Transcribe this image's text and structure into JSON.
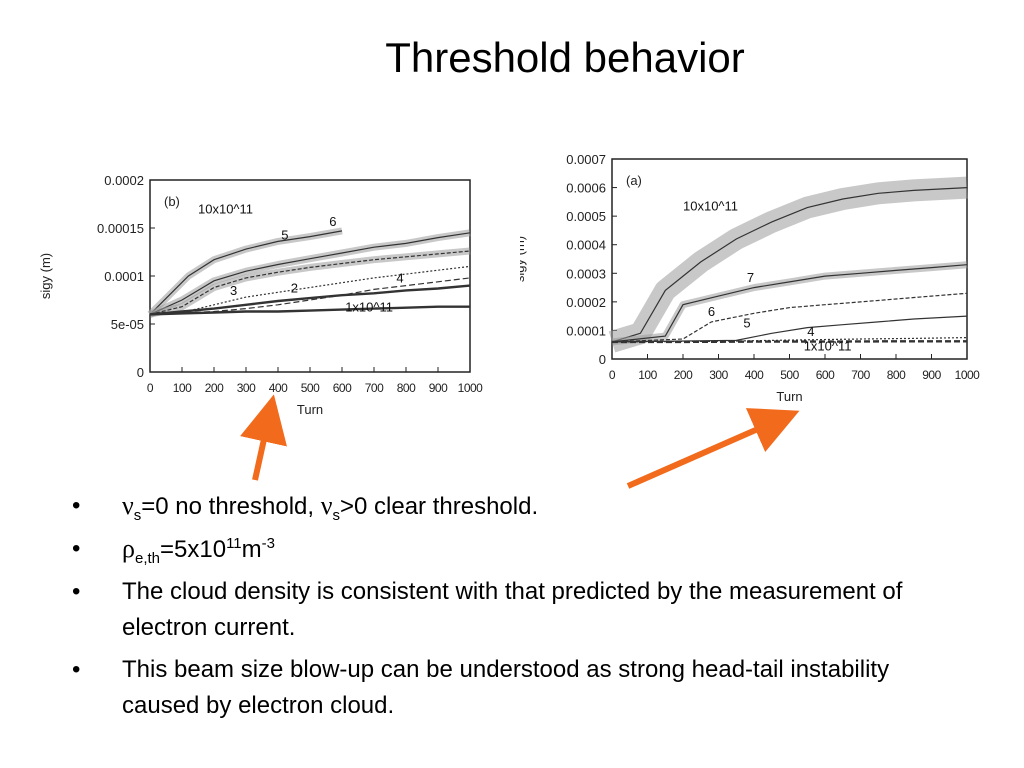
{
  "slide": {
    "title": "Threshold behavior",
    "bullets": {
      "b1": {
        "nu1": "ν",
        "sub1": "s",
        "t1": "=0 no threshold, ",
        "nu2": "ν",
        "sub2": "s",
        "t2": ">0 clear threshold."
      },
      "b2": {
        "rho": "ρ",
        "sub": "e,th",
        "t1": "=5x10",
        "sup1": "11",
        "t2": "m",
        "sup2": "-3"
      },
      "b3": "The cloud density is consistent with that predicted by the measurement of electron current.",
      "b4": "This beam size blow-up can be understood as strong head-tail instability caused by electron cloud."
    },
    "arrow_color": "#f26a1b"
  },
  "chart_data": [
    {
      "type": "line",
      "panel_label": "(b)",
      "xlabel": "Turn",
      "ylabel": "sigy (m)",
      "xlim": [
        0,
        1000
      ],
      "ylim": [
        0,
        0.0002
      ],
      "xticks": [
        "0",
        "100",
        "200",
        "300",
        "400",
        "500",
        "600",
        "700",
        "800",
        "900",
        "1000"
      ],
      "yticks": [
        "0",
        "5e-05",
        "0.0001",
        "0.00015",
        "0.0002"
      ],
      "annotations": [
        "10x10^11",
        "6",
        "5",
        "3",
        "2",
        "4",
        "1x10^11"
      ],
      "series": [
        {
          "name": "10x10^11",
          "x": [
            0,
            60,
            120,
            200,
            300,
            400,
            500,
            600
          ],
          "y": [
            6e-05,
            8e-05,
            0.0001,
            0.000117,
            0.000128,
            0.000136,
            0.000141,
            0.000147
          ]
        },
        {
          "name": "6",
          "x": [
            0,
            100,
            200,
            300,
            400,
            500,
            600,
            700,
            800,
            900,
            1000
          ],
          "y": [
            6e-05,
            7.5e-05,
            9.5e-05,
            0.000105,
            0.000112,
            0.000118,
            0.000124,
            0.00013,
            0.000134,
            0.00014,
            0.000145
          ]
        },
        {
          "name": "5",
          "x": [
            0,
            100,
            200,
            300,
            400,
            500,
            600,
            700,
            800,
            900,
            1000
          ],
          "y": [
            6e-05,
            6.8e-05,
            8.8e-05,
            9.8e-05,
            0.000104,
            0.000109,
            0.000113,
            0.000117,
            0.00012,
            0.000123,
            0.000126
          ]
        },
        {
          "name": "4",
          "x": [
            0,
            100,
            200,
            300,
            400,
            500,
            600,
            700,
            800,
            900,
            1000
          ],
          "y": [
            6e-05,
            6.3e-05,
            6.6e-05,
            7e-05,
            7.4e-05,
            7.7e-05,
            8e-05,
            8.2e-05,
            8.5e-05,
            8.7e-05,
            9e-05
          ]
        },
        {
          "name": "3",
          "x": [
            0,
            100,
            200,
            300,
            400,
            500,
            600,
            700,
            800,
            900,
            1000
          ],
          "y": [
            6e-05,
            6.2e-05,
            7e-05,
            7.8e-05,
            8.3e-05,
            8.8e-05,
            9.3e-05,
            9.8e-05,
            0.000102,
            0.000106,
            0.00011
          ]
        },
        {
          "name": "2",
          "x": [
            0,
            200,
            300,
            400,
            500,
            600,
            700,
            800,
            900,
            1000
          ],
          "y": [
            6e-05,
            6.3e-05,
            6.6e-05,
            7e-05,
            7.5e-05,
            8e-05,
            8.6e-05,
            9e-05,
            9.4e-05,
            9.8e-05
          ]
        },
        {
          "name": "1x10^11",
          "x": [
            0,
            100,
            200,
            300,
            400,
            500,
            600,
            700,
            800,
            900,
            1000
          ],
          "y": [
            6e-05,
            6.1e-05,
            6.2e-05,
            6.3e-05,
            6.3e-05,
            6.4e-05,
            6.5e-05,
            6.6e-05,
            6.7e-05,
            6.8e-05,
            6.8e-05
          ]
        }
      ]
    },
    {
      "type": "line",
      "panel_label": "(a)",
      "xlabel": "Turn",
      "ylabel": "sigy (m)",
      "xlim": [
        0,
        1000
      ],
      "ylim": [
        0,
        0.0007
      ],
      "xticks": [
        "0",
        "100",
        "200",
        "300",
        "400",
        "500",
        "600",
        "700",
        "800",
        "900",
        "1000"
      ],
      "yticks": [
        "0",
        "0.0001",
        "0.0002",
        "0.0003",
        "0.0004",
        "0.0005",
        "0.0006",
        "0.0007"
      ],
      "annotations": [
        "10x10^11",
        "7",
        "6",
        "5",
        "4",
        "1x10^11"
      ],
      "series": [
        {
          "name": "10x10^11",
          "x": [
            0,
            80,
            150,
            250,
            350,
            450,
            550,
            650,
            750,
            850,
            1000
          ],
          "y": [
            6e-05,
            9e-05,
            0.00024,
            0.00034,
            0.00042,
            0.00048,
            0.00053,
            0.00056,
            0.00058,
            0.00059,
            0.0006
          ]
        },
        {
          "name": "7",
          "x": [
            0,
            150,
            200,
            300,
            400,
            500,
            600,
            700,
            800,
            900,
            1000
          ],
          "y": [
            6e-05,
            8e-05,
            0.00019,
            0.00022,
            0.00025,
            0.00027,
            0.00029,
            0.0003,
            0.00031,
            0.00032,
            0.00033
          ]
        },
        {
          "name": "6",
          "x": [
            0,
            200,
            280,
            400,
            500,
            600,
            700,
            800,
            900,
            1000
          ],
          "y": [
            6e-05,
            7e-05,
            0.00013,
            0.00016,
            0.00018,
            0.00019,
            0.0002,
            0.00021,
            0.00022,
            0.00023
          ]
        },
        {
          "name": "5",
          "x": [
            0,
            350,
            450,
            550,
            650,
            750,
            850,
            1000
          ],
          "y": [
            6e-05,
            6.5e-05,
            9e-05,
            0.00011,
            0.00012,
            0.00013,
            0.00014,
            0.00015
          ]
        },
        {
          "name": "4",
          "x": [
            0,
            300,
            500,
            700,
            850,
            1000
          ],
          "y": [
            6e-05,
            6.2e-05,
            6.6e-05,
            7e-05,
            7.2e-05,
            7.5e-05
          ]
        },
        {
          "name": "1x10^11",
          "x": [
            0,
            200,
            400,
            600,
            800,
            1000
          ],
          "y": [
            6e-05,
            6e-05,
            6.1e-05,
            6.1e-05,
            6.2e-05,
            6.2e-05
          ]
        }
      ]
    }
  ]
}
